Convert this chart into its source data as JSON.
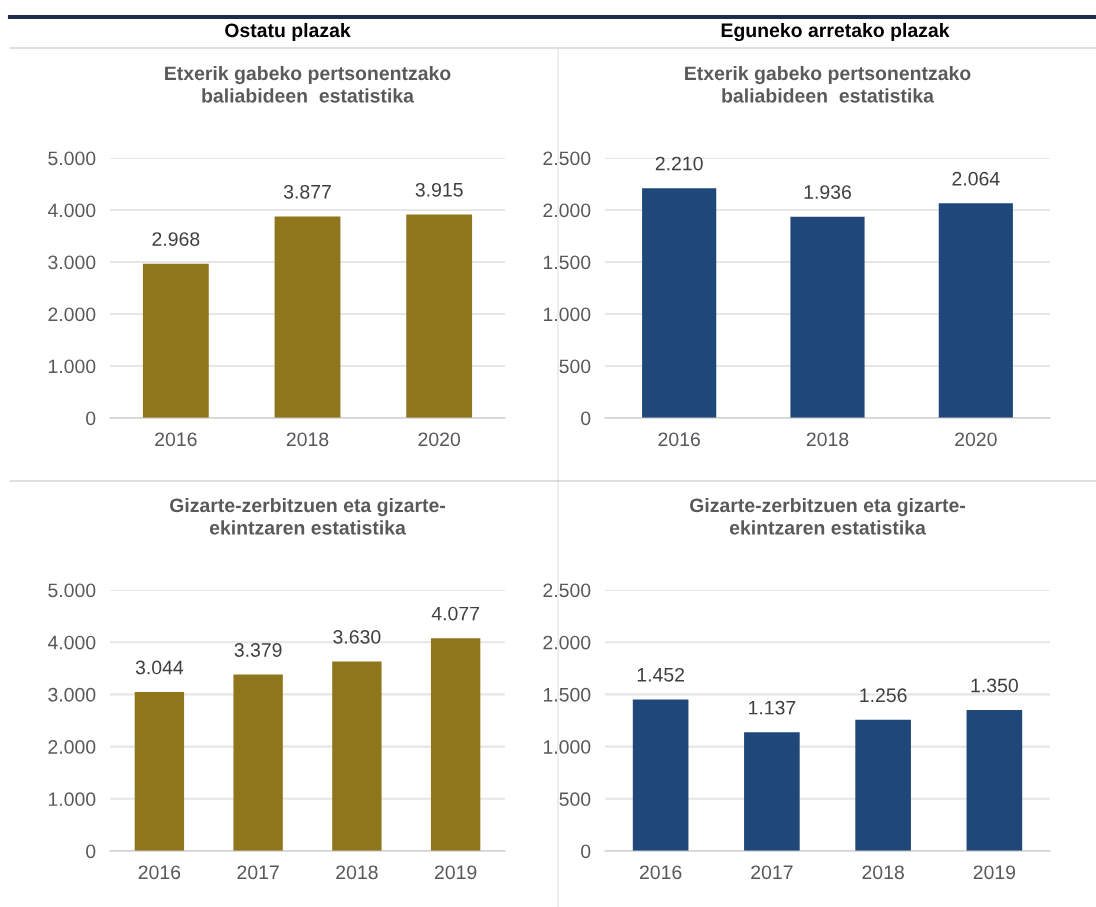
{
  "chart_data": [
    {
      "type": "bar",
      "title": "Etxerik gabeko pertsonentzako\nbaliabideen  estatistika",
      "annotations": [
        "Ostatu plazak"
      ],
      "categories": [
        "2016",
        "2018",
        "2020"
      ],
      "values": [
        2968,
        3877,
        3915
      ],
      "value_labels": [
        "2.968",
        "3.877",
        "3.915"
      ],
      "color": "#8f751c",
      "ylim": [
        0,
        5000
      ],
      "yticks": [
        {
          "value": 0,
          "label": "0"
        },
        {
          "value": 1000,
          "label": "1.000"
        },
        {
          "value": 2000,
          "label": "2.000"
        },
        {
          "value": 3000,
          "label": "3.000"
        },
        {
          "value": 4000,
          "label": "4.000"
        },
        {
          "value": 5000,
          "label": "5.000"
        }
      ],
      "grid": "y"
    },
    {
      "type": "bar",
      "title": "Etxerik gabeko pertsonentzako\nbaliabideen  estatistika",
      "annotations": [
        "Eguneko arretako plazak"
      ],
      "categories": [
        "2016",
        "2018",
        "2020"
      ],
      "values": [
        2210,
        1936,
        2064
      ],
      "value_labels": [
        "2.210",
        "1.936",
        "2.064"
      ],
      "color": "#1f477a",
      "ylim": [
        0,
        2500
      ],
      "yticks": [
        {
          "value": 0,
          "label": "0"
        },
        {
          "value": 500,
          "label": "500"
        },
        {
          "value": 1000,
          "label": "1.000"
        },
        {
          "value": 1500,
          "label": "1.500"
        },
        {
          "value": 2000,
          "label": "2.000"
        },
        {
          "value": 2500,
          "label": "2.500"
        }
      ],
      "grid": "y"
    },
    {
      "type": "bar",
      "title": "Gizarte-zerbitzuen eta gizarte-\nekintzaren estatistika",
      "categories": [
        "2016",
        "2017",
        "2018",
        "2019"
      ],
      "values": [
        3044,
        3379,
        3630,
        4077
      ],
      "value_labels": [
        "3.044",
        "3.379",
        "3.630",
        "4.077"
      ],
      "color": "#8f751c",
      "ylim": [
        0,
        5000
      ],
      "yticks": [
        {
          "value": 0,
          "label": "0"
        },
        {
          "value": 1000,
          "label": "1.000"
        },
        {
          "value": 2000,
          "label": "2.000"
        },
        {
          "value": 3000,
          "label": "3.000"
        },
        {
          "value": 4000,
          "label": "4.000"
        },
        {
          "value": 5000,
          "label": "5.000"
        }
      ],
      "grid": "y"
    },
    {
      "type": "bar",
      "title": "Gizarte-zerbitzuen eta gizarte-\nekintzaren estatistika",
      "categories": [
        "2016",
        "2017",
        "2018",
        "2019"
      ],
      "values": [
        1452,
        1137,
        1256,
        1350
      ],
      "value_labels": [
        "1.452",
        "1.137",
        "1.256",
        "1.350"
      ],
      "color": "#1f477a",
      "ylim": [
        0,
        2500
      ],
      "yticks": [
        {
          "value": 0,
          "label": "0"
        },
        {
          "value": 500,
          "label": "500"
        },
        {
          "value": 1000,
          "label": "1.000"
        },
        {
          "value": 1500,
          "label": "1.500"
        },
        {
          "value": 2000,
          "label": "2.000"
        },
        {
          "value": 2500,
          "label": "2.500"
        }
      ],
      "grid": "y"
    }
  ]
}
